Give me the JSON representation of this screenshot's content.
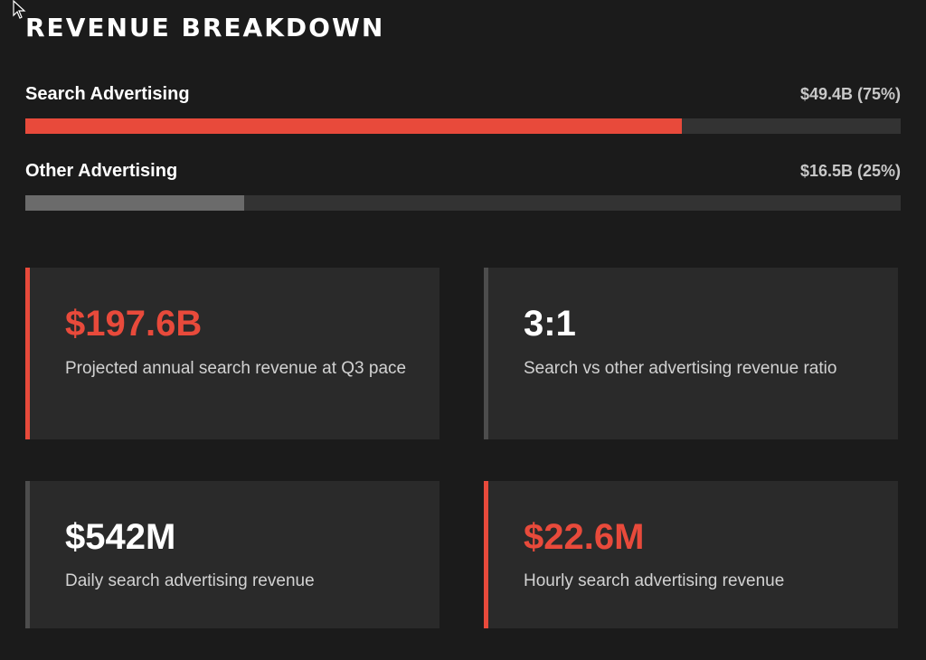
{
  "title": "REVENUE BREAKDOWN",
  "colors": {
    "background": "#1b1b1b",
    "accent": "#e84a3b",
    "muted_bar": "#6b6b6b",
    "track": "#333333",
    "card": "#2a2a2a"
  },
  "bars": [
    {
      "label": "Search Advertising",
      "value": "$49.4B (75%)",
      "fraction": 0.75
    },
    {
      "label": "Other Advertising",
      "value": "$16.5B (25%)",
      "fraction": 0.25
    }
  ],
  "cards": [
    {
      "metric": "$197.6B",
      "description": "Projected annual search revenue at Q3 pace"
    },
    {
      "metric": "3:1",
      "description": "Search vs other advertising revenue ratio"
    },
    {
      "metric": "$542M",
      "description": "Daily search advertising revenue"
    },
    {
      "metric": "$22.6M",
      "description": "Hourly search advertising revenue"
    }
  ]
}
